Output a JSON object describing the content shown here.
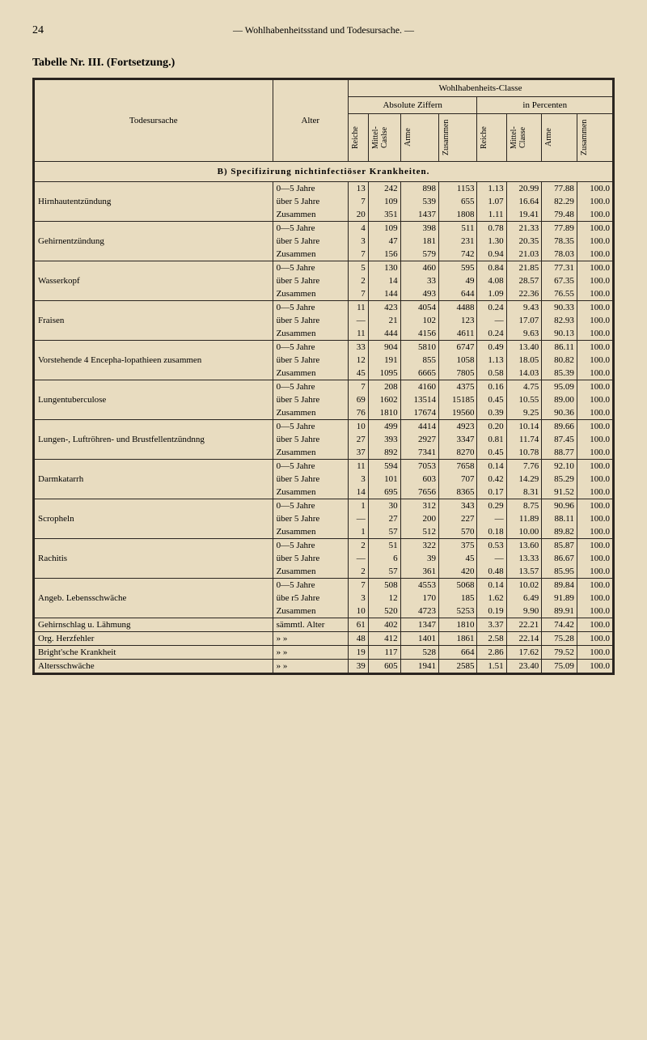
{
  "page_number": "24",
  "header_text": "— Wohlhabenheitsstand und Todesursache. —",
  "table_title": "Tabelle Nr. III. (Fortsetzung.)",
  "columns": {
    "todesursache": "Todesursache",
    "alter": "Alter",
    "wohlhabenheits": "Wohlhabenheits-Classe",
    "absolute": "Absolute Ziffern",
    "percenten": "in Percenten",
    "reiche": "Reiche",
    "mittel": "Mittel-Caslse",
    "arme": "Arme",
    "zusammen": "Zusammen",
    "mittel2": "Mittel-Classe"
  },
  "section_b": "B) Specifizirung nichtinfectiöser Krankheiten.",
  "rows": [
    {
      "cause": "Hirnhautentzündung",
      "data": [
        {
          "alter": "0—5 Jahre",
          "r": "13",
          "m": "242",
          "a": "898",
          "z": "1153",
          "rp": "1.13",
          "mp": "20.99",
          "ap": "77.88",
          "zp": "100.0"
        },
        {
          "alter": "über 5 Jahre",
          "r": "7",
          "m": "109",
          "a": "539",
          "z": "655",
          "rp": "1.07",
          "mp": "16.64",
          "ap": "82.29",
          "zp": "100.0"
        },
        {
          "alter": "Zusammen",
          "r": "20",
          "m": "351",
          "a": "1437",
          "z": "1808",
          "rp": "1.11",
          "mp": "19.41",
          "ap": "79.48",
          "zp": "100.0"
        }
      ]
    },
    {
      "cause": "Gehirnentzündung",
      "data": [
        {
          "alter": "0—5 Jahre",
          "r": "4",
          "m": "109",
          "a": "398",
          "z": "511",
          "rp": "0.78",
          "mp": "21.33",
          "ap": "77.89",
          "zp": "100.0"
        },
        {
          "alter": "über 5 Jahre",
          "r": "3",
          "m": "47",
          "a": "181",
          "z": "231",
          "rp": "1.30",
          "mp": "20.35",
          "ap": "78.35",
          "zp": "100.0"
        },
        {
          "alter": "Zusammen",
          "r": "7",
          "m": "156",
          "a": "579",
          "z": "742",
          "rp": "0.94",
          "mp": "21.03",
          "ap": "78.03",
          "zp": "100.0"
        }
      ]
    },
    {
      "cause": "Wasserkopf",
      "data": [
        {
          "alter": "0—5 Jahre",
          "r": "5",
          "m": "130",
          "a": "460",
          "z": "595",
          "rp": "0.84",
          "mp": "21.85",
          "ap": "77.31",
          "zp": "100.0"
        },
        {
          "alter": "über 5 Jahre",
          "r": "2",
          "m": "14",
          "a": "33",
          "z": "49",
          "rp": "4.08",
          "mp": "28.57",
          "ap": "67.35",
          "zp": "100.0"
        },
        {
          "alter": "Zusammen",
          "r": "7",
          "m": "144",
          "a": "493",
          "z": "644",
          "rp": "1.09",
          "mp": "22.36",
          "ap": "76.55",
          "zp": "100.0"
        }
      ]
    },
    {
      "cause": "Fraisen",
      "data": [
        {
          "alter": "0—5 Jahre",
          "r": "11",
          "m": "423",
          "a": "4054",
          "z": "4488",
          "rp": "0.24",
          "mp": "9.43",
          "ap": "90.33",
          "zp": "100.0"
        },
        {
          "alter": "über 5 Jahre",
          "r": "—",
          "m": "21",
          "a": "102",
          "z": "123",
          "rp": "—",
          "mp": "17.07",
          "ap": "82.93",
          "zp": "100.0"
        },
        {
          "alter": "Zusammen",
          "r": "11",
          "m": "444",
          "a": "4156",
          "z": "4611",
          "rp": "0.24",
          "mp": "9.63",
          "ap": "90.13",
          "zp": "100.0"
        }
      ]
    },
    {
      "cause": "Vorstehende 4 Encepha-lopathieen zusammen",
      "data": [
        {
          "alter": "0—5 Jahre",
          "r": "33",
          "m": "904",
          "a": "5810",
          "z": "6747",
          "rp": "0.49",
          "mp": "13.40",
          "ap": "86.11",
          "zp": "100.0"
        },
        {
          "alter": "über 5 Jahre",
          "r": "12",
          "m": "191",
          "a": "855",
          "z": "1058",
          "rp": "1.13",
          "mp": "18.05",
          "ap": "80.82",
          "zp": "100.0"
        },
        {
          "alter": "Zusammen",
          "r": "45",
          "m": "1095",
          "a": "6665",
          "z": "7805",
          "rp": "0.58",
          "mp": "14.03",
          "ap": "85.39",
          "zp": "100.0"
        }
      ]
    },
    {
      "cause": "Lungentuberculose",
      "data": [
        {
          "alter": "0—5 Jahre",
          "r": "7",
          "m": "208",
          "a": "4160",
          "z": "4375",
          "rp": "0.16",
          "mp": "4.75",
          "ap": "95.09",
          "zp": "100.0"
        },
        {
          "alter": "über 5 Jahre",
          "r": "69",
          "m": "1602",
          "a": "13514",
          "z": "15185",
          "rp": "0.45",
          "mp": "10.55",
          "ap": "89.00",
          "zp": "100.0"
        },
        {
          "alter": "Zusammen",
          "r": "76",
          "m": "1810",
          "a": "17674",
          "z": "19560",
          "rp": "0.39",
          "mp": "9.25",
          "ap": "90.36",
          "zp": "100.0"
        }
      ]
    },
    {
      "cause": "Lungen-, Luftröhren- und Brustfellentzündnng",
      "data": [
        {
          "alter": "0—5 Jahre",
          "r": "10",
          "m": "499",
          "a": "4414",
          "z": "4923",
          "rp": "0.20",
          "mp": "10.14",
          "ap": "89.66",
          "zp": "100.0"
        },
        {
          "alter": "über 5 Jahre",
          "r": "27",
          "m": "393",
          "a": "2927",
          "z": "3347",
          "rp": "0.81",
          "mp": "11.74",
          "ap": "87.45",
          "zp": "100.0"
        },
        {
          "alter": "Zusammen",
          "r": "37",
          "m": "892",
          "a": "7341",
          "z": "8270",
          "rp": "0.45",
          "mp": "10.78",
          "ap": "88.77",
          "zp": "100.0"
        }
      ]
    },
    {
      "cause": "Darmkatarrh",
      "data": [
        {
          "alter": "0—5 Jahre",
          "r": "11",
          "m": "594",
          "a": "7053",
          "z": "7658",
          "rp": "0.14",
          "mp": "7.76",
          "ap": "92.10",
          "zp": "100.0"
        },
        {
          "alter": "über 5 Jahre",
          "r": "3",
          "m": "101",
          "a": "603",
          "z": "707",
          "rp": "0.42",
          "mp": "14.29",
          "ap": "85.29",
          "zp": "100.0"
        },
        {
          "alter": "Zusammen",
          "r": "14",
          "m": "695",
          "a": "7656",
          "z": "8365",
          "rp": "0.17",
          "mp": "8.31",
          "ap": "91.52",
          "zp": "100.0"
        }
      ]
    },
    {
      "cause": "Scropheln",
      "data": [
        {
          "alter": "0—5 Jahre",
          "r": "1",
          "m": "30",
          "a": "312",
          "z": "343",
          "rp": "0.29",
          "mp": "8.75",
          "ap": "90.96",
          "zp": "100.0"
        },
        {
          "alter": "über 5 Jahre",
          "r": "—",
          "m": "27",
          "a": "200",
          "z": "227",
          "rp": "—",
          "mp": "11.89",
          "ap": "88.11",
          "zp": "100.0"
        },
        {
          "alter": "Zusammen",
          "r": "1",
          "m": "57",
          "a": "512",
          "z": "570",
          "rp": "0.18",
          "mp": "10.00",
          "ap": "89.82",
          "zp": "100.0"
        }
      ]
    },
    {
      "cause": "Rachitis",
      "data": [
        {
          "alter": "0—5 Jahre",
          "r": "2",
          "m": "51",
          "a": "322",
          "z": "375",
          "rp": "0.53",
          "mp": "13.60",
          "ap": "85.87",
          "zp": "100.0"
        },
        {
          "alter": "über 5 Jahre",
          "r": "—",
          "m": "6",
          "a": "39",
          "z": "45",
          "rp": "—",
          "mp": "13.33",
          "ap": "86.67",
          "zp": "100.0"
        },
        {
          "alter": "Zusammen",
          "r": "2",
          "m": "57",
          "a": "361",
          "z": "420",
          "rp": "0.48",
          "mp": "13.57",
          "ap": "85.95",
          "zp": "100.0"
        }
      ]
    },
    {
      "cause": "Angeb. Lebensschwäche",
      "data": [
        {
          "alter": "0—5 Jahre",
          "r": "7",
          "m": "508",
          "a": "4553",
          "z": "5068",
          "rp": "0.14",
          "mp": "10.02",
          "ap": "89.84",
          "zp": "100.0"
        },
        {
          "alter": "übe r5 Jahre",
          "r": "3",
          "m": "12",
          "a": "170",
          "z": "185",
          "rp": "1.62",
          "mp": "6.49",
          "ap": "91.89",
          "zp": "100.0"
        },
        {
          "alter": "Zusammen",
          "r": "10",
          "m": "520",
          "a": "4723",
          "z": "5253",
          "rp": "0.19",
          "mp": "9.90",
          "ap": "89.91",
          "zp": "100.0"
        }
      ]
    },
    {
      "cause": "Gehirnschlag u. Lähmung",
      "data": [
        {
          "alter": "sämmtl. Alter",
          "r": "61",
          "m": "402",
          "a": "1347",
          "z": "1810",
          "rp": "3.37",
          "mp": "22.21",
          "ap": "74.42",
          "zp": "100.0"
        }
      ]
    },
    {
      "cause": "Org. Herzfehler",
      "data": [
        {
          "alter": "»     »",
          "r": "48",
          "m": "412",
          "a": "1401",
          "z": "1861",
          "rp": "2.58",
          "mp": "22.14",
          "ap": "75.28",
          "zp": "100.0"
        }
      ]
    },
    {
      "cause": "Bright'sche Krankheit",
      "data": [
        {
          "alter": "»     »",
          "r": "19",
          "m": "117",
          "a": "528",
          "z": "664",
          "rp": "2.86",
          "mp": "17.62",
          "ap": "79.52",
          "zp": "100.0"
        }
      ]
    },
    {
      "cause": "Altersschwäche",
      "data": [
        {
          "alter": "»     »",
          "r": "39",
          "m": "605",
          "a": "1941",
          "z": "2585",
          "rp": "1.51",
          "mp": "23.40",
          "ap": "75.09",
          "zp": "100.0"
        }
      ]
    }
  ]
}
